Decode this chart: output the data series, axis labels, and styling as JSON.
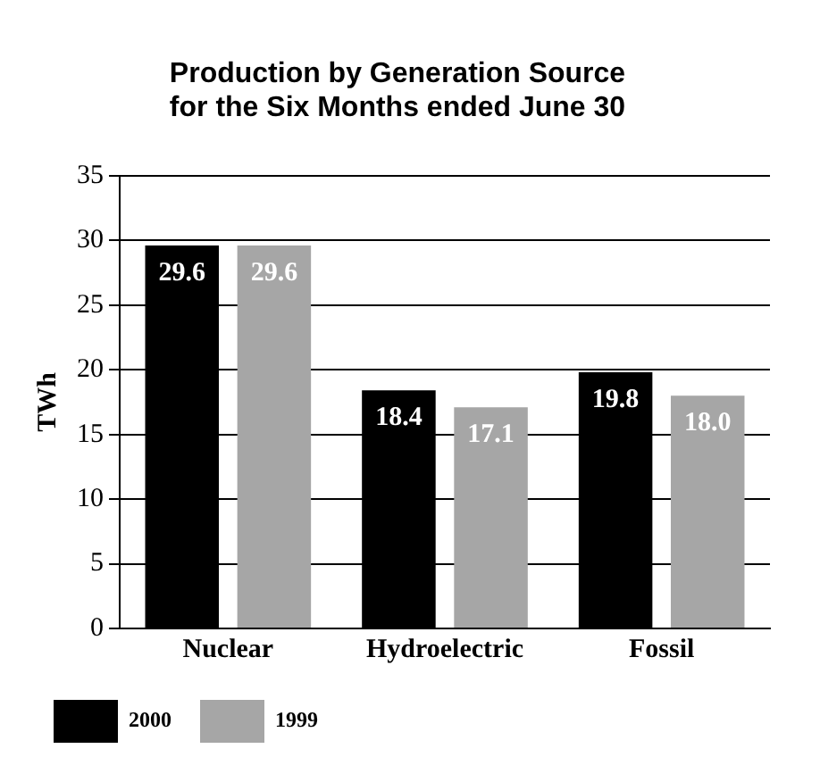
{
  "chart_data": {
    "type": "bar",
    "title": "Production by Generation Source\nfor the Six Months ended June 30",
    "ylabel": "TWh",
    "categories": [
      "Nuclear",
      "Hydroelectric",
      "Fossil"
    ],
    "series": [
      {
        "name": "2000",
        "color": "#000000",
        "values": [
          29.6,
          18.4,
          19.8
        ],
        "value_labels": [
          "29.6",
          "18.4",
          "19.8"
        ]
      },
      {
        "name": "1999",
        "color": "#a6a6a6",
        "values": [
          29.6,
          17.1,
          18.0
        ],
        "value_labels": [
          "29.6",
          "17.1",
          "18.0"
        ]
      }
    ],
    "ylim": [
      0,
      35
    ],
    "yticks": [
      0,
      5,
      10,
      15,
      20,
      25,
      30,
      35
    ],
    "grid": "y",
    "legend": "bottom left"
  }
}
